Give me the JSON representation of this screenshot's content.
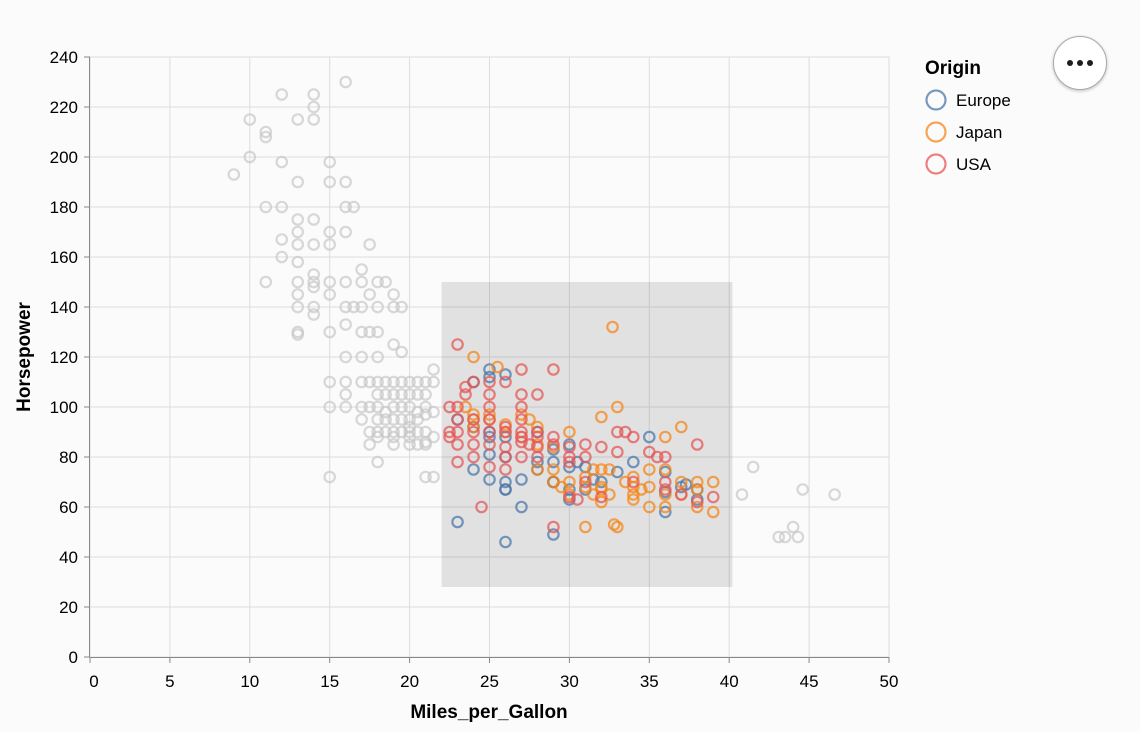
{
  "colors": {
    "Europe": "#4c78a8",
    "Japan": "#f58518",
    "USA": "#e45756",
    "unselected": "#c8c8c8",
    "brush": "#333333"
  },
  "menu": {
    "icon": "more-horizontal-icon"
  },
  "chart_data": {
    "type": "scatter",
    "xlabel": "Miles_per_Gallon",
    "ylabel": "Horsepower",
    "xlim": [
      0,
      50
    ],
    "ylim": [
      0,
      240
    ],
    "x_ticks": [
      "0",
      "5",
      "10",
      "15",
      "20",
      "25",
      "30",
      "35",
      "40",
      "45",
      "50"
    ],
    "y_ticks": [
      "0",
      "20",
      "40",
      "60",
      "80",
      "100",
      "120",
      "140",
      "160",
      "180",
      "200",
      "220",
      "240"
    ],
    "grid": true,
    "legend": {
      "title": "Origin",
      "position": "top-right",
      "entries": [
        "Europe",
        "Japan",
        "USA"
      ]
    },
    "brush": {
      "x": [
        22,
        40.2
      ],
      "y": [
        28,
        150
      ]
    },
    "series": [
      {
        "name": "Unselected",
        "points": [
          [
            9,
            193
          ],
          [
            10,
            215
          ],
          [
            10,
            200
          ],
          [
            11,
            210
          ],
          [
            11,
            208
          ],
          [
            11,
            180
          ],
          [
            11,
            150
          ],
          [
            12,
            225
          ],
          [
            12,
            198
          ],
          [
            12,
            180
          ],
          [
            12,
            167
          ],
          [
            12,
            160
          ],
          [
            13,
            215
          ],
          [
            13,
            190
          ],
          [
            13,
            175
          ],
          [
            13,
            170
          ],
          [
            13,
            165
          ],
          [
            13,
            158
          ],
          [
            13,
            150
          ],
          [
            13,
            145
          ],
          [
            13,
            140
          ],
          [
            13,
            130
          ],
          [
            13,
            129
          ],
          [
            14,
            225
          ],
          [
            14,
            220
          ],
          [
            14,
            215
          ],
          [
            14,
            175
          ],
          [
            14,
            165
          ],
          [
            14,
            153
          ],
          [
            14,
            150
          ],
          [
            14,
            148
          ],
          [
            14,
            140
          ],
          [
            14,
            137
          ],
          [
            15,
            198
          ],
          [
            15,
            190
          ],
          [
            15,
            170
          ],
          [
            15,
            165
          ],
          [
            15,
            150
          ],
          [
            15,
            145
          ],
          [
            15,
            130
          ],
          [
            15,
            110
          ],
          [
            15,
            100
          ],
          [
            15,
            72
          ],
          [
            16,
            230
          ],
          [
            16,
            190
          ],
          [
            16,
            180
          ],
          [
            16,
            170
          ],
          [
            16,
            150
          ],
          [
            16,
            140
          ],
          [
            16,
            133
          ],
          [
            16,
            120
          ],
          [
            16,
            110
          ],
          [
            16,
            105
          ],
          [
            16,
            100
          ],
          [
            16.5,
            180
          ],
          [
            16.5,
            140
          ],
          [
            17,
            155
          ],
          [
            17,
            150
          ],
          [
            17,
            140
          ],
          [
            17,
            130
          ],
          [
            17,
            120
          ],
          [
            17,
            110
          ],
          [
            17,
            100
          ],
          [
            17,
            95
          ],
          [
            17.5,
            165
          ],
          [
            17.5,
            145
          ],
          [
            17.5,
            130
          ],
          [
            17.5,
            110
          ],
          [
            17.5,
            100
          ],
          [
            17.5,
            90
          ],
          [
            17.5,
            85
          ],
          [
            18,
            150
          ],
          [
            18,
            140
          ],
          [
            18,
            130
          ],
          [
            18,
            120
          ],
          [
            18,
            110
          ],
          [
            18,
            105
          ],
          [
            18,
            100
          ],
          [
            18,
            95
          ],
          [
            18,
            90
          ],
          [
            18,
            88
          ],
          [
            18,
            78
          ],
          [
            18.5,
            150
          ],
          [
            18.5,
            110
          ],
          [
            18.5,
            105
          ],
          [
            18.5,
            98
          ],
          [
            18.5,
            95
          ],
          [
            18.5,
            90
          ],
          [
            19,
            145
          ],
          [
            19,
            140
          ],
          [
            19,
            125
          ],
          [
            19,
            110
          ],
          [
            19,
            105
          ],
          [
            19,
            100
          ],
          [
            19,
            95
          ],
          [
            19,
            90
          ],
          [
            19,
            88
          ],
          [
            19,
            85
          ],
          [
            19.5,
            140
          ],
          [
            19.5,
            122
          ],
          [
            19.5,
            110
          ],
          [
            19.5,
            105
          ],
          [
            19.5,
            100
          ],
          [
            19.5,
            95
          ],
          [
            19.5,
            90
          ],
          [
            20,
            110
          ],
          [
            20,
            105
          ],
          [
            20,
            100
          ],
          [
            20,
            95
          ],
          [
            20,
            92
          ],
          [
            20,
            90
          ],
          [
            20,
            88
          ],
          [
            20,
            85
          ],
          [
            20.5,
            110
          ],
          [
            20.5,
            105
          ],
          [
            20.5,
            98
          ],
          [
            20.5,
            95
          ],
          [
            20.5,
            90
          ],
          [
            20.5,
            85
          ],
          [
            21,
            110
          ],
          [
            21,
            105
          ],
          [
            21,
            100
          ],
          [
            21,
            97
          ],
          [
            21,
            90
          ],
          [
            21,
            86
          ],
          [
            21,
            85
          ],
          [
            21.5,
            115
          ],
          [
            21.5,
            110
          ],
          [
            21.5,
            98
          ],
          [
            21.5,
            88
          ],
          [
            21,
            72
          ],
          [
            21.5,
            72
          ],
          [
            41.5,
            76
          ],
          [
            40.8,
            65
          ],
          [
            43.1,
            48
          ],
          [
            43.5,
            48
          ],
          [
            44,
            52
          ],
          [
            44.3,
            48
          ],
          [
            44.6,
            67
          ],
          [
            46.6,
            65
          ]
        ]
      },
      {
        "name": "Europe",
        "points": [
          [
            23,
            95
          ],
          [
            23,
            54
          ],
          [
            24,
            110
          ],
          [
            24,
            75
          ],
          [
            24,
            92
          ],
          [
            25,
            115
          ],
          [
            25,
            88
          ],
          [
            25,
            81
          ],
          [
            25,
            71
          ],
          [
            25,
            90
          ],
          [
            25,
            112
          ],
          [
            26,
            113
          ],
          [
            26,
            67
          ],
          [
            26,
            46
          ],
          [
            26,
            70
          ],
          [
            26,
            80
          ],
          [
            26,
            88
          ],
          [
            27,
            71
          ],
          [
            27,
            60
          ],
          [
            28,
            90
          ],
          [
            28,
            75
          ],
          [
            28,
            78
          ],
          [
            29,
            78
          ],
          [
            29,
            70
          ],
          [
            29,
            83
          ],
          [
            29,
            49
          ],
          [
            30,
            76
          ],
          [
            30,
            63
          ],
          [
            30,
            67
          ],
          [
            30,
            85
          ],
          [
            30.5,
            78
          ],
          [
            31,
            76
          ],
          [
            31,
            67
          ],
          [
            31.5,
            71
          ],
          [
            32,
            70
          ],
          [
            33,
            74
          ],
          [
            34,
            78
          ],
          [
            35,
            88
          ],
          [
            36,
            58
          ],
          [
            36,
            74
          ],
          [
            36,
            66
          ],
          [
            37,
            68
          ],
          [
            37.3,
            69
          ],
          [
            38,
            67
          ],
          [
            38,
            63
          ],
          [
            26,
            67
          ],
          [
            29,
            70
          ]
        ]
      },
      {
        "name": "Japan",
        "points": [
          [
            24,
            120
          ],
          [
            24,
            97
          ],
          [
            24,
            95
          ],
          [
            23.5,
            100
          ],
          [
            24,
            92
          ],
          [
            25,
            97
          ],
          [
            25.5,
            116
          ],
          [
            25,
            95
          ],
          [
            26,
            93
          ],
          [
            26,
            90
          ],
          [
            27,
            97
          ],
          [
            27.5,
            95
          ],
          [
            27,
            88
          ],
          [
            28,
            92
          ],
          [
            28,
            75
          ],
          [
            28,
            85
          ],
          [
            29,
            84
          ],
          [
            29,
            75
          ],
          [
            29,
            70
          ],
          [
            29.5,
            68
          ],
          [
            30,
            90
          ],
          [
            30,
            65
          ],
          [
            30,
            70
          ],
          [
            31,
            72
          ],
          [
            31,
            68
          ],
          [
            31,
            52
          ],
          [
            31.5,
            75
          ],
          [
            31.5,
            65
          ],
          [
            32,
            96
          ],
          [
            32,
            75
          ],
          [
            32,
            68
          ],
          [
            32,
            62
          ],
          [
            32,
            67
          ],
          [
            32.5,
            75
          ],
          [
            32.7,
            132
          ],
          [
            32.8,
            53
          ],
          [
            33,
            100
          ],
          [
            33,
            52
          ],
          [
            33.5,
            70
          ],
          [
            34,
            68
          ],
          [
            34,
            65
          ],
          [
            34,
            72
          ],
          [
            34.5,
            67
          ],
          [
            35,
            68
          ],
          [
            35,
            60
          ],
          [
            35,
            75
          ],
          [
            36,
            88
          ],
          [
            36,
            65
          ],
          [
            36,
            60
          ],
          [
            37,
            92
          ],
          [
            37,
            70
          ],
          [
            37,
            65
          ],
          [
            38,
            67
          ],
          [
            38,
            60
          ],
          [
            39,
            58
          ],
          [
            39,
            70
          ],
          [
            32.5,
            65
          ],
          [
            34,
            63
          ],
          [
            36,
            75
          ],
          [
            38,
            70
          ]
        ]
      },
      {
        "name": "USA",
        "points": [
          [
            22.5,
            90
          ],
          [
            22.5,
            88
          ],
          [
            23,
            125
          ],
          [
            23,
            100
          ],
          [
            23,
            95
          ],
          [
            23,
            90
          ],
          [
            23,
            85
          ],
          [
            23,
            78
          ],
          [
            23.5,
            108
          ],
          [
            23.5,
            105
          ],
          [
            24,
            110
          ],
          [
            24,
            95
          ],
          [
            24,
            90
          ],
          [
            24,
            85
          ],
          [
            24,
            80
          ],
          [
            24.5,
            60
          ],
          [
            25,
            110
          ],
          [
            25,
            105
          ],
          [
            25,
            95
          ],
          [
            25,
            90
          ],
          [
            25,
            85
          ],
          [
            25,
            76
          ],
          [
            26,
            110
          ],
          [
            26,
            92
          ],
          [
            26,
            90
          ],
          [
            26,
            84
          ],
          [
            26,
            80
          ],
          [
            26,
            75
          ],
          [
            27,
            115
          ],
          [
            27,
            105
          ],
          [
            27,
            95
          ],
          [
            27,
            90
          ],
          [
            27,
            88
          ],
          [
            27,
            86
          ],
          [
            27,
            80
          ],
          [
            27.5,
            85
          ],
          [
            28,
            105
          ],
          [
            28,
            90
          ],
          [
            28,
            88
          ],
          [
            28,
            84
          ],
          [
            28,
            80
          ],
          [
            29,
            115
          ],
          [
            29,
            85
          ],
          [
            29,
            52
          ],
          [
            30,
            84
          ],
          [
            30,
            80
          ],
          [
            30,
            78
          ],
          [
            30,
            64
          ],
          [
            30.5,
            63
          ],
          [
            31,
            85
          ],
          [
            31,
            70
          ],
          [
            32,
            84
          ],
          [
            32,
            64
          ],
          [
            33,
            82
          ],
          [
            33.5,
            90
          ],
          [
            34,
            88
          ],
          [
            34,
            70
          ],
          [
            35,
            82
          ],
          [
            35.5,
            80
          ],
          [
            36,
            80
          ],
          [
            36,
            70
          ],
          [
            36,
            67
          ],
          [
            37,
            65
          ],
          [
            38,
            85
          ],
          [
            38,
            62
          ],
          [
            39,
            64
          ],
          [
            22.5,
            100
          ],
          [
            25,
            100
          ],
          [
            27,
            100
          ],
          [
            29,
            88
          ],
          [
            31,
            80
          ],
          [
            33,
            90
          ]
        ]
      }
    ]
  }
}
